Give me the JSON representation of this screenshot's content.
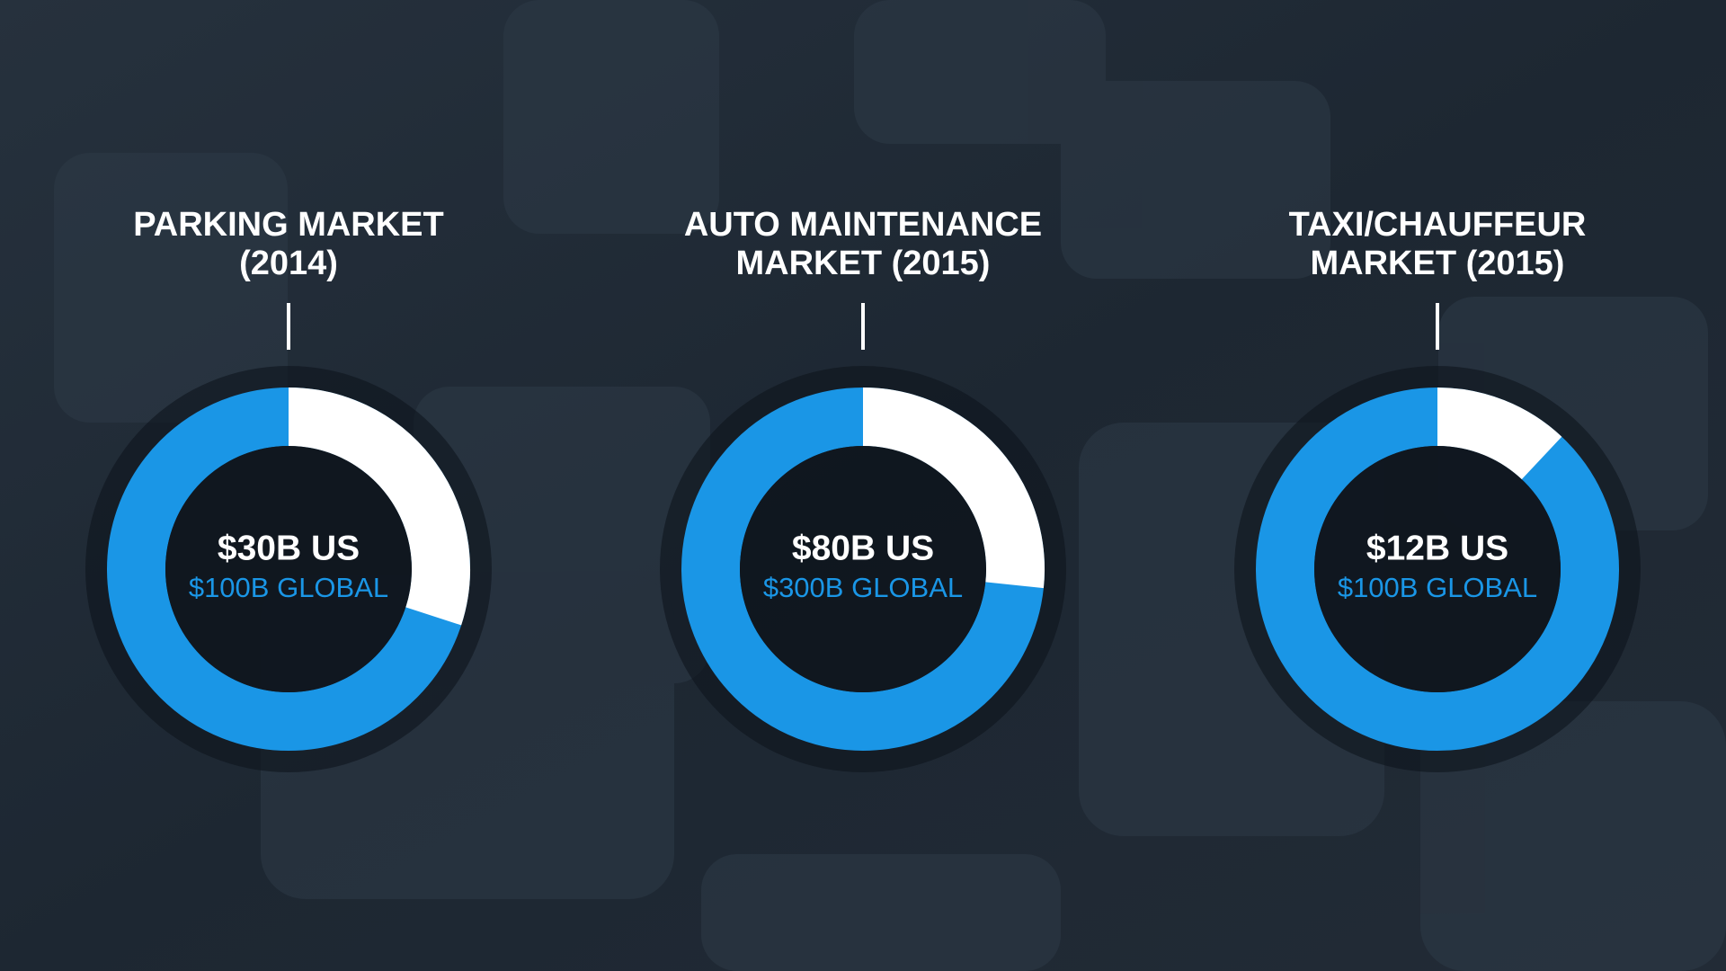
{
  "chart_data": [
    {
      "type": "pie",
      "title": [
        "PARKING MARKET",
        "(2014)"
      ],
      "values": [
        30,
        100
      ],
      "value_labels": [
        "$30B US",
        "$100B GLOBAL"
      ],
      "colors": [
        "#ffffff",
        "#1a96e6"
      ]
    },
    {
      "type": "pie",
      "title": [
        "AUTO MAINTENANCE",
        "MARKET (2015)"
      ],
      "values": [
        80,
        300
      ],
      "value_labels": [
        "$80B US",
        "$300B GLOBAL"
      ],
      "colors": [
        "#ffffff",
        "#1a96e6"
      ]
    },
    {
      "type": "pie",
      "title": [
        "TAXI/CHAUFFEUR",
        "MARKET (2015)"
      ],
      "values": [
        12,
        100
      ],
      "value_labels": [
        "$12B US",
        "$100B GLOBAL"
      ],
      "colors": [
        "#ffffff",
        "#1a96e6"
      ]
    }
  ]
}
